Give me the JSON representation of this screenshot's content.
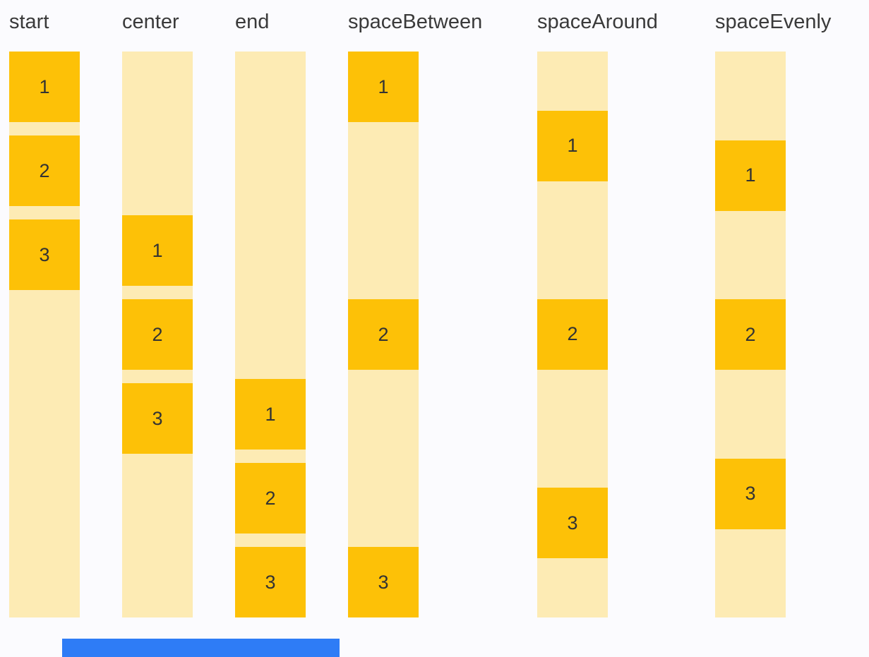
{
  "columns": [
    {
      "label": "start",
      "alignment": "start",
      "items": [
        "1",
        "2",
        "3"
      ]
    },
    {
      "label": "center",
      "alignment": "center",
      "items": [
        "1",
        "2",
        "3"
      ]
    },
    {
      "label": "end",
      "alignment": "end",
      "items": [
        "1",
        "2",
        "3"
      ]
    },
    {
      "label": "spaceBetween",
      "alignment": "spaceBetween",
      "items": [
        "1",
        "2",
        "3"
      ]
    },
    {
      "label": "spaceAround",
      "alignment": "spaceAround",
      "items": [
        "1",
        "2",
        "3"
      ]
    },
    {
      "label": "spaceEvenly",
      "alignment": "spaceEvenly",
      "items": [
        "1",
        "2",
        "3"
      ]
    }
  ],
  "colors": {
    "background": "#FBFBFE",
    "track": "#FDEBB4",
    "item": "#FDC107",
    "item_text": "#333333",
    "label_text": "#3A3A3A",
    "progress_bar": "#2E7CF6"
  }
}
